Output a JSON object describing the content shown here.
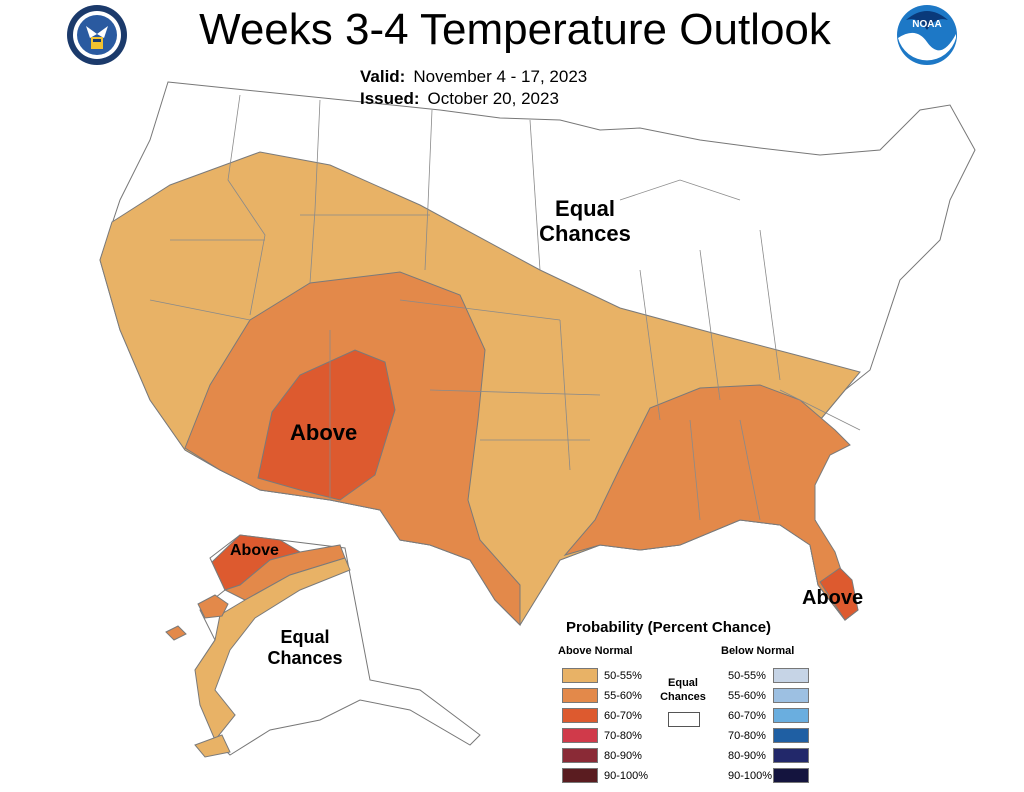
{
  "header": {
    "title": "Weeks 3-4 Temperature Outlook",
    "valid_label": "Valid:",
    "valid_value": "November 4 - 17, 2023",
    "issued_label": "Issued:",
    "issued_value": "October 20, 2023"
  },
  "map": {
    "labels": {
      "equal_chances_conus_line1": "Equal",
      "equal_chances_conus_line2": "Chances",
      "above_southwest": "Above",
      "above_alaska": "Above",
      "above_florida": "Above",
      "equal_chances_alaska_line1": "Equal",
      "equal_chances_alaska_line2": "Chances"
    },
    "colors": {
      "above_50_55": "#e8b266",
      "above_55_60": "#e3894a",
      "above_60_70": "#dd5a2f",
      "border": "#7a7a7a"
    }
  },
  "legend": {
    "title": "Probability (Percent Chance)",
    "above_header": "Above Normal",
    "below_header": "Below Normal",
    "equal_label_line1": "Equal",
    "equal_label_line2": "Chances",
    "above": [
      {
        "label": "50-55%",
        "color": "#e8b266"
      },
      {
        "label": "55-60%",
        "color": "#e3894a"
      },
      {
        "label": "60-70%",
        "color": "#dd5a2f"
      },
      {
        "label": "70-80%",
        "color": "#d03a4a"
      },
      {
        "label": "80-90%",
        "color": "#8a2a36"
      },
      {
        "label": "90-100%",
        "color": "#5a1c20"
      }
    ],
    "below": [
      {
        "label": "50-55%",
        "color": "#c6d4e6"
      },
      {
        "label": "55-60%",
        "color": "#9dc0e2"
      },
      {
        "label": "60-70%",
        "color": "#6aaedf"
      },
      {
        "label": "70-80%",
        "color": "#1f5fa3"
      },
      {
        "label": "80-90%",
        "color": "#22286a"
      },
      {
        "label": "90-100%",
        "color": "#14143e"
      }
    ]
  },
  "logos": {
    "left": "department-of-commerce-seal-icon",
    "right": "noaa-logo-icon",
    "right_text": "NOAA"
  }
}
